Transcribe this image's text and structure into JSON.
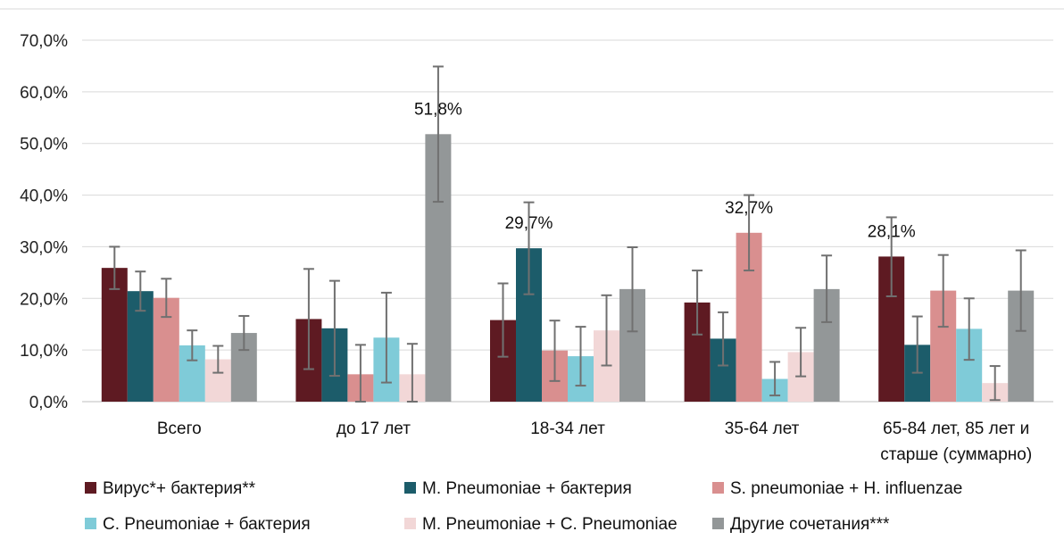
{
  "chart_data": {
    "type": "bar",
    "categories": [
      [
        "Всего"
      ],
      [
        "до 17 лет"
      ],
      [
        "18-34 лет"
      ],
      [
        "35-64 лет"
      ],
      [
        "65-84 лет, 85 лет и",
        "старше (суммарно)"
      ]
    ],
    "ylim": [
      0,
      70
    ],
    "yticks": [
      "0,0%",
      "10,0%",
      "20,0%",
      "30,0%",
      "40,0%",
      "50,0%",
      "60,0%",
      "70,0%"
    ],
    "grid": true,
    "legend_position": "bottom",
    "series": [
      {
        "name": "Вирус*+ бактерия**",
        "color": "#5e1a22",
        "values": [
          25.9,
          16.0,
          15.8,
          19.2,
          28.1
        ],
        "error_low": [
          21.8,
          6.3,
          8.7,
          13.0,
          20.4
        ],
        "error_high": [
          30.0,
          25.7,
          22.9,
          25.4,
          35.7
        ]
      },
      {
        "name": "M. Pneumoniae + бактерия",
        "color": "#1c5c6a",
        "values": [
          21.4,
          14.2,
          29.7,
          12.2,
          11.0
        ],
        "error_low": [
          17.6,
          5.0,
          20.8,
          7.0,
          5.6
        ],
        "error_high": [
          25.2,
          23.4,
          38.6,
          17.3,
          16.5
        ]
      },
      {
        "name": "S. pneumoniae + H. influenzae",
        "color": "#d98f8f",
        "values": [
          20.1,
          5.3,
          9.9,
          32.7,
          21.5
        ],
        "error_low": [
          16.4,
          0.0,
          4.0,
          25.4,
          14.5
        ],
        "error_high": [
          23.8,
          11.0,
          15.7,
          40.0,
          28.4
        ]
      },
      {
        "name": "C. Pneumoniae + бактерия",
        "color": "#7fcbd8",
        "values": [
          10.9,
          12.4,
          8.8,
          4.4,
          14.1
        ],
        "error_low": [
          8.0,
          3.7,
          3.1,
          1.2,
          8.1
        ],
        "error_high": [
          13.8,
          21.1,
          14.5,
          7.7,
          20.0
        ]
      },
      {
        "name": "M. Pneumoniae + C. Pneumoniae",
        "color": "#f2d7d7",
        "values": [
          8.2,
          5.3,
          13.8,
          9.6,
          3.6
        ],
        "error_low": [
          5.6,
          0.0,
          7.0,
          4.9,
          0.3
        ],
        "error_high": [
          10.8,
          11.2,
          20.6,
          14.3,
          6.9
        ]
      },
      {
        "name": "Другие сочетания***",
        "color": "#939798",
        "values": [
          13.3,
          51.8,
          21.8,
          21.8,
          21.5
        ],
        "error_low": [
          10.0,
          38.7,
          13.6,
          15.4,
          13.7
        ],
        "error_high": [
          16.6,
          64.9,
          29.9,
          28.3,
          29.3
        ]
      }
    ],
    "data_labels": [
      {
        "series": 5,
        "category": 1,
        "text": "51,8%"
      },
      {
        "series": 1,
        "category": 2,
        "text": "29,7%"
      },
      {
        "series": 2,
        "category": 3,
        "text": "32,7%"
      },
      {
        "series": 0,
        "category": 4,
        "text": "28,1%"
      }
    ]
  }
}
